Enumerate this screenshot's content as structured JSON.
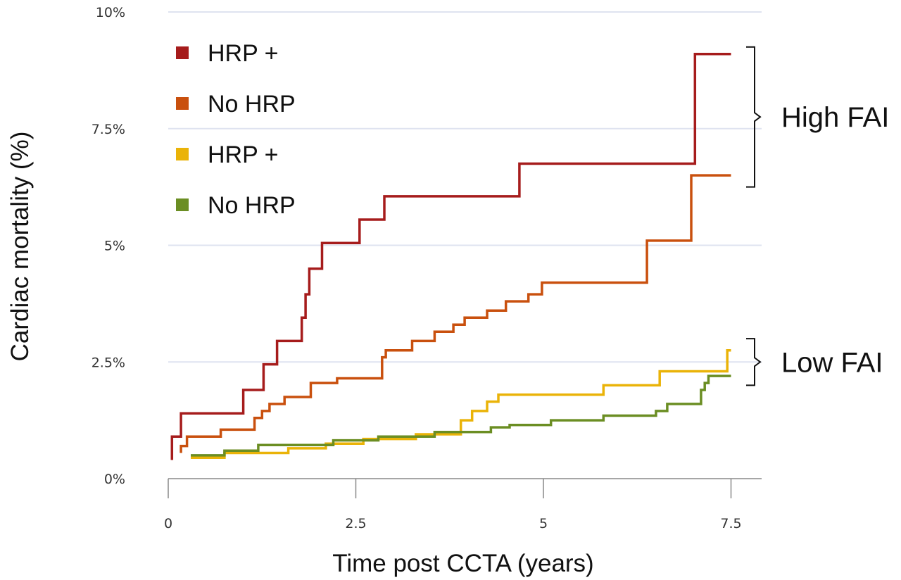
{
  "chart_data": {
    "type": "line",
    "step": true,
    "title": "",
    "xlabel": "Time post CCTA (years)",
    "ylabel": "Cardiac mortality (%)",
    "xlim": [
      0,
      7.9
    ],
    "ylim": [
      0,
      10
    ],
    "x_ticks": [
      {
        "value": 0,
        "label": "0"
      },
      {
        "value": 2.5,
        "label": "2.5"
      },
      {
        "value": 5,
        "label": "5"
      },
      {
        "value": 7.5,
        "label": "7.5"
      }
    ],
    "y_ticks": [
      {
        "value": 0,
        "label": "0%"
      },
      {
        "value": 2.5,
        "label": "2.5%"
      },
      {
        "value": 5,
        "label": "5%"
      },
      {
        "value": 7.5,
        "label": "7.5%"
      },
      {
        "value": 10,
        "label": "10%"
      }
    ],
    "grid": true,
    "legend_position": "top-left",
    "series": [
      {
        "name": "HRP +",
        "color": "#a61c1c",
        "points": [
          [
            0.05,
            0.4
          ],
          [
            0.05,
            0.9
          ],
          [
            0.17,
            0.9
          ],
          [
            0.17,
            1.4
          ],
          [
            1.0,
            1.4
          ],
          [
            1.0,
            1.9
          ],
          [
            1.27,
            1.9
          ],
          [
            1.27,
            2.45
          ],
          [
            1.45,
            2.45
          ],
          [
            1.45,
            2.95
          ],
          [
            1.78,
            2.95
          ],
          [
            1.78,
            3.45
          ],
          [
            1.83,
            3.45
          ],
          [
            1.83,
            3.95
          ],
          [
            1.88,
            3.95
          ],
          [
            1.88,
            4.5
          ],
          [
            2.05,
            4.5
          ],
          [
            2.05,
            5.05
          ],
          [
            2.55,
            5.05
          ],
          [
            2.55,
            5.55
          ],
          [
            2.88,
            5.55
          ],
          [
            2.88,
            6.05
          ],
          [
            4.68,
            6.05
          ],
          [
            4.68,
            6.75
          ],
          [
            7.02,
            6.75
          ],
          [
            7.02,
            9.1
          ],
          [
            7.5,
            9.1
          ]
        ]
      },
      {
        "name": "No HRP",
        "color": "#c9500e",
        "points": [
          [
            0.17,
            0.55
          ],
          [
            0.17,
            0.7
          ],
          [
            0.25,
            0.7
          ],
          [
            0.25,
            0.9
          ],
          [
            0.7,
            0.9
          ],
          [
            0.7,
            1.05
          ],
          [
            1.15,
            1.05
          ],
          [
            1.15,
            1.3
          ],
          [
            1.25,
            1.3
          ],
          [
            1.25,
            1.45
          ],
          [
            1.35,
            1.45
          ],
          [
            1.35,
            1.6
          ],
          [
            1.55,
            1.6
          ],
          [
            1.55,
            1.75
          ],
          [
            1.9,
            1.75
          ],
          [
            1.9,
            2.05
          ],
          [
            2.25,
            2.05
          ],
          [
            2.25,
            2.15
          ],
          [
            2.85,
            2.15
          ],
          [
            2.85,
            2.6
          ],
          [
            2.9,
            2.6
          ],
          [
            2.9,
            2.75
          ],
          [
            3.25,
            2.75
          ],
          [
            3.25,
            2.95
          ],
          [
            3.55,
            2.95
          ],
          [
            3.55,
            3.15
          ],
          [
            3.8,
            3.15
          ],
          [
            3.8,
            3.3
          ],
          [
            3.95,
            3.3
          ],
          [
            3.95,
            3.45
          ],
          [
            4.25,
            3.45
          ],
          [
            4.25,
            3.6
          ],
          [
            4.5,
            3.6
          ],
          [
            4.5,
            3.8
          ],
          [
            4.8,
            3.8
          ],
          [
            4.8,
            3.95
          ],
          [
            4.98,
            3.95
          ],
          [
            4.98,
            4.2
          ],
          [
            6.38,
            4.2
          ],
          [
            6.38,
            5.1
          ],
          [
            6.97,
            5.1
          ],
          [
            6.97,
            6.5
          ],
          [
            7.5,
            6.5
          ]
        ]
      },
      {
        "name": "HRP +",
        "color": "#eab308",
        "points": [
          [
            0.3,
            0.45
          ],
          [
            0.75,
            0.45
          ],
          [
            0.75,
            0.55
          ],
          [
            1.6,
            0.55
          ],
          [
            1.6,
            0.65
          ],
          [
            2.1,
            0.65
          ],
          [
            2.1,
            0.75
          ],
          [
            2.6,
            0.75
          ],
          [
            2.6,
            0.85
          ],
          [
            3.3,
            0.85
          ],
          [
            3.3,
            0.95
          ],
          [
            3.9,
            0.95
          ],
          [
            3.9,
            1.25
          ],
          [
            4.05,
            1.25
          ],
          [
            4.05,
            1.45
          ],
          [
            4.25,
            1.45
          ],
          [
            4.25,
            1.65
          ],
          [
            4.4,
            1.65
          ],
          [
            4.4,
            1.8
          ],
          [
            5.8,
            1.8
          ],
          [
            5.8,
            2.0
          ],
          [
            6.55,
            2.0
          ],
          [
            6.55,
            2.3
          ],
          [
            7.45,
            2.3
          ],
          [
            7.45,
            2.75
          ],
          [
            7.5,
            2.75
          ]
        ]
      },
      {
        "name": "No HRP",
        "color": "#6b8e23",
        "points": [
          [
            0.3,
            0.5
          ],
          [
            0.75,
            0.5
          ],
          [
            0.75,
            0.6
          ],
          [
            1.2,
            0.6
          ],
          [
            1.2,
            0.72
          ],
          [
            2.2,
            0.72
          ],
          [
            2.2,
            0.82
          ],
          [
            2.8,
            0.82
          ],
          [
            2.8,
            0.9
          ],
          [
            3.55,
            0.9
          ],
          [
            3.55,
            1.0
          ],
          [
            4.3,
            1.0
          ],
          [
            4.3,
            1.1
          ],
          [
            4.55,
            1.1
          ],
          [
            4.55,
            1.15
          ],
          [
            5.1,
            1.15
          ],
          [
            5.1,
            1.25
          ],
          [
            5.8,
            1.25
          ],
          [
            5.8,
            1.35
          ],
          [
            6.5,
            1.35
          ],
          [
            6.5,
            1.45
          ],
          [
            6.65,
            1.45
          ],
          [
            6.65,
            1.6
          ],
          [
            7.1,
            1.6
          ],
          [
            7.1,
            1.9
          ],
          [
            7.15,
            1.9
          ],
          [
            7.15,
            2.05
          ],
          [
            7.2,
            2.05
          ],
          [
            7.2,
            2.2
          ],
          [
            7.5,
            2.2
          ]
        ]
      }
    ],
    "annotations": [
      {
        "text": "High FAI",
        "y_range": [
          6.25,
          9.25
        ]
      },
      {
        "text": "Low FAI",
        "y_range": [
          2.0,
          3.0
        ]
      }
    ]
  }
}
